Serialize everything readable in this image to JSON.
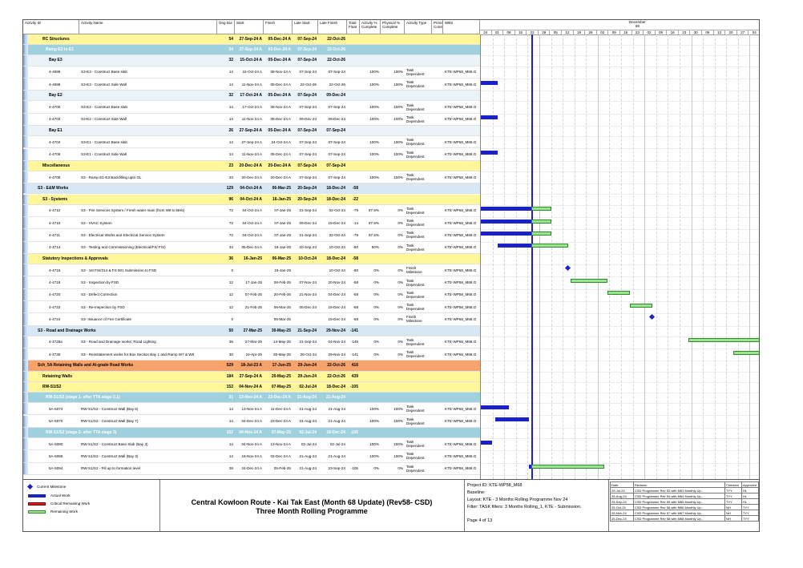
{
  "columns": {
    "activity_id": "Activity ID",
    "activity_name": "Activity Name",
    "orig_dur": "Orig Dur",
    "start": "Start",
    "finish": "Finish",
    "late_start": "Late Start",
    "late_finish": "Late Finish",
    "total_float": "Total Float",
    "activity_pct": "Activity % Complete",
    "physical_pct": "Physical % Complete",
    "activity_type": "Activity Type",
    "primary_constraint": "Prima Const",
    "wbs": "WBS"
  },
  "timeline": {
    "months": [
      {
        "name": "December",
        "num": "68"
      },
      {
        "name": "January",
        "num": "69"
      },
      {
        "name": "February",
        "num": "70"
      },
      {
        "name": "March",
        "num": "71"
      },
      {
        "name": "April",
        "num": "72"
      },
      {
        "name": "May",
        "num": "73"
      }
    ],
    "weeks": [
      "24",
      "01",
      "08",
      "15",
      "22",
      "29",
      "05",
      "12",
      "19",
      "26",
      "02",
      "09",
      "16",
      "23",
      "02",
      "09",
      "16",
      "23",
      "30",
      "06",
      "13",
      "20",
      "27",
      "04"
    ]
  },
  "rows": [
    {
      "type": "group",
      "level": "l1",
      "name": "RC Structures",
      "dur": "54",
      "start": "27-Sep-24 A",
      "finish": "05-Dec-24 A",
      "ls": "07-Sep-24",
      "lf": "22-Oct-26",
      "tf": ""
    },
    {
      "type": "group",
      "level": "l2",
      "name": "Ramp E3 to E1",
      "dur": "54",
      "start": "27-Sep-24 A",
      "finish": "05-Dec-24 A",
      "ls": "07-Sep-24",
      "lf": "22-Oct-26",
      "tf": ""
    },
    {
      "type": "group",
      "level": "l3",
      "name": "Bay E3",
      "dur": "32",
      "start": "15-Oct-24 A",
      "finish": "05-Dec-24 A",
      "ls": "07-Sep-24",
      "lf": "22-Oct-26",
      "tf": ""
    },
    {
      "type": "task",
      "id": "4-4696",
      "name": "S3-E3 - Construct Base slab",
      "dur": "14",
      "start": "15-Oct-24 A",
      "finish": "06-Nov-24 A",
      "ls": "07-Sep-24",
      "lf": "07-Sep-24",
      "tf": "",
      "apc": "100%",
      "ppc": "100%",
      "atype": "Task Dependent",
      "wbs": "KTE-WP58_M68.O"
    },
    {
      "type": "task",
      "id": "4-4698",
      "name": "S3-E3 - Construct Side Wall",
      "dur": "14",
      "start": "11-Nov-24 A",
      "finish": "05-Dec-24 A",
      "ls": "22-Oct-26",
      "lf": "22-Oct-26",
      "tf": "",
      "apc": "100%",
      "ppc": "100%",
      "atype": "Task Dependent",
      "wbs": "KTE-WP58_M68.O"
    },
    {
      "type": "group",
      "level": "l3",
      "name": "Bay E2",
      "dur": "32",
      "start": "17-Oct-24 A",
      "finish": "05-Dec-24 A",
      "ls": "07-Sep-24",
      "lf": "09-Dec-24",
      "tf": ""
    },
    {
      "type": "task",
      "id": "4-4700",
      "name": "S3-E2 - Construct Base slab",
      "dur": "14",
      "start": "17-Oct-24 A",
      "finish": "06-Nov-24 A",
      "ls": "07-Sep-24",
      "lf": "07-Sep-24",
      "tf": "",
      "apc": "100%",
      "ppc": "100%",
      "atype": "Task Dependent",
      "wbs": "KTE-WP58_M68.O"
    },
    {
      "type": "task",
      "id": "4-4702",
      "name": "S3-E2 - Construct Side Wall",
      "dur": "14",
      "start": "11-Nov-24 A",
      "finish": "05-Dec-24 A",
      "ls": "09-Dec-24",
      "lf": "09-Dec-24",
      "tf": "",
      "apc": "100%",
      "ppc": "100%",
      "atype": "Task Dependent",
      "wbs": "KTE-WP58_M68.O"
    },
    {
      "type": "group",
      "level": "l3",
      "name": "Bay E1",
      "dur": "26",
      "start": "27-Sep-24 A",
      "finish": "05-Dec-24 A",
      "ls": "07-Sep-24",
      "lf": "07-Sep-24",
      "tf": ""
    },
    {
      "type": "task",
      "id": "4-4704",
      "name": "S3-E1 - Construct Base slab",
      "dur": "14",
      "start": "27-Sep-24 A",
      "finish": "24-Oct-24 A",
      "ls": "07-Sep-24",
      "lf": "07-Sep-24",
      "tf": "",
      "apc": "100%",
      "ppc": "100%",
      "atype": "Task Dependent",
      "wbs": "KTE-WP58_M68.O"
    },
    {
      "type": "task",
      "id": "4-4706",
      "name": "S3-E1 - Construct Side Wall",
      "dur": "14",
      "start": "11-Nov-24 A",
      "finish": "05-Dec-24 A",
      "ls": "07-Sep-24",
      "lf": "07-Sep-24",
      "tf": "",
      "apc": "100%",
      "ppc": "100%",
      "atype": "Task Dependent",
      "wbs": "KTE-WP58_M68.O"
    },
    {
      "type": "group",
      "level": "l1",
      "name": "Miscellaneous",
      "dur": "23",
      "start": "20-Dec-24 A",
      "finish": "20-Dec-24 A",
      "ls": "07-Sep-24",
      "lf": "07-Sep-24",
      "tf": ""
    },
    {
      "type": "task",
      "id": "4-4708",
      "name": "S3 - Ramp E1-E3 Backfilling upto GL",
      "dur": "23",
      "start": "20-Dec-24 A",
      "finish": "20-Dec-24 A",
      "ls": "07-Sep-24",
      "lf": "07-Sep-24",
      "tf": "",
      "apc": "100%",
      "ppc": "100%",
      "atype": "Task Dependent",
      "wbs": "KTE-WP58_M68.O"
    },
    {
      "type": "group",
      "level": "l0",
      "name": "S3 - E&M Works",
      "dur": "129",
      "start": "04-Oct-24 A",
      "finish": "06-Mar-25",
      "ls": "20-Sep-24",
      "lf": "18-Dec-24",
      "tf": "-58"
    },
    {
      "type": "group",
      "level": "l1",
      "name": "S3 - Systems",
      "dur": "96",
      "start": "04-Oct-24 A",
      "finish": "16-Jan-25",
      "ls": "20-Sep-24",
      "lf": "18-Dec-24",
      "tf": "-22"
    },
    {
      "type": "task",
      "id": "4-4712",
      "name": "S3 - Fire Services System / Fresh water main (from W8 to BHb)",
      "dur": "72",
      "start": "04-Oct-24 A",
      "finish": "07-Jan-25",
      "ls": "21-Sep-24",
      "lf": "02-Oct-24",
      "tf": "-79",
      "apc": "87.5%",
      "ppc": "0%",
      "atype": "Task Dependent",
      "wbs": "KTE-WP58_M68.O"
    },
    {
      "type": "task",
      "id": "4-4710",
      "name": "S3 - HVAC System",
      "dur": "72",
      "start": "04-Oct-24 A",
      "finish": "07-Jan-25",
      "ls": "09-Dec-24",
      "lf": "18-Dec-24",
      "tf": "-14",
      "apc": "87.5%",
      "ppc": "0%",
      "atype": "Task Dependent",
      "wbs": "KTE-WP58_M68.O"
    },
    {
      "type": "task",
      "id": "4-4711",
      "name": "S3 - Electrical Works and Electrical Service System",
      "dur": "72",
      "start": "04-Oct-24 A",
      "finish": "07-Jan-25",
      "ls": "21-Sep-24",
      "lf": "02-Oct-24",
      "tf": "-79",
      "apc": "87.5%",
      "ppc": "0%",
      "atype": "Task Dependent",
      "wbs": "KTE-WP58_M68.O"
    },
    {
      "type": "task",
      "id": "4-4714",
      "name": "S3 - Testing and Commissioning (Electrical/FS/ FSI)",
      "dur": "34",
      "start": "05-Dec-24 A",
      "finish": "16-Jan-25",
      "ls": "20-Sep-24",
      "lf": "10-Oct-24",
      "tf": "-80",
      "apc": "50%",
      "ppc": "0%",
      "atype": "Task Dependent",
      "wbs": "KTE-WP58_M68.O"
    },
    {
      "type": "group",
      "level": "l1",
      "name": "Statutory Inspections & Approvals",
      "dur": "36",
      "start": "16-Jan-25",
      "finish": "06-Mar-25",
      "ls": "10-Oct-24",
      "lf": "18-Dec-24",
      "tf": "-58"
    },
    {
      "type": "task",
      "id": "4-4716",
      "name": "S3 - 1st FSI/314 & FS 501 Submission to FSD",
      "dur": "0",
      "start": "",
      "finish": "16-Jan-25",
      "ls": "",
      "lf": "10-Oct-24",
      "tf": "-80",
      "apc": "0%",
      "ppc": "0%",
      "atype": "Finish Milestone",
      "wbs": "KTE-WP58_M68.O"
    },
    {
      "type": "task",
      "id": "4-4718",
      "name": "S3 - Inspection by FSD",
      "dur": "12",
      "start": "17-Jan-25",
      "finish": "06-Feb-25",
      "ls": "07-Nov-24",
      "lf": "20-Nov-24",
      "tf": "-58",
      "apc": "0%",
      "ppc": "0%",
      "atype": "Task Dependent",
      "wbs": "KTE-WP58_M68.O"
    },
    {
      "type": "task",
      "id": "4-4720",
      "name": "S3 - Defect Correction",
      "dur": "12",
      "start": "07-Feb-25",
      "finish": "20-Feb-25",
      "ls": "21-Nov-24",
      "lf": "04-Dec-24",
      "tf": "-58",
      "apc": "0%",
      "ppc": "0%",
      "atype": "Task Dependent",
      "wbs": "KTE-WP58_M68.O"
    },
    {
      "type": "task",
      "id": "4-4722",
      "name": "S3 - Re-Inspection by FSD",
      "dur": "12",
      "start": "21-Feb-25",
      "finish": "06-Mar-25",
      "ls": "05-Dec-24",
      "lf": "18-Dec-24",
      "tf": "-58",
      "apc": "0%",
      "ppc": "0%",
      "atype": "Task Dependent",
      "wbs": "KTE-WP58_M68.O"
    },
    {
      "type": "task",
      "id": "4-4724",
      "name": "S3- Issuance of Fire Certificate",
      "dur": "0",
      "start": "",
      "finish": "06-Mar-25",
      "ls": "",
      "lf": "18-Dec-24",
      "tf": "-58",
      "apc": "0%",
      "ppc": "0%",
      "atype": "Finish Milestone",
      "wbs": "KTE-WP58_M68.O"
    },
    {
      "type": "group",
      "level": "l0",
      "name": "S3 - Road and Drainage Works",
      "dur": "50",
      "start": "27-Mar-25",
      "finish": "30-May-25",
      "ls": "21-Sep-24",
      "lf": "29-Nov-24",
      "tf": "-141"
    },
    {
      "type": "task",
      "id": "4-4726a",
      "name": "S3 - Road and Drainage works; Road Lighting",
      "dur": "36",
      "start": "27-Mar-25",
      "finish": "14-May-25",
      "ls": "21-Sep-24",
      "lf": "04-Nov-24",
      "tf": "-149",
      "apc": "0%",
      "ppc": "0%",
      "atype": "Task Dependent",
      "wbs": "KTE-WP58_M68.O"
    },
    {
      "type": "task",
      "id": "4-4730",
      "name": "S3 - Reinstatement works for Box Section Bay 1 and Ramp W7 & W8",
      "dur": "30",
      "start": "24-Apr-25",
      "finish": "30-May-25",
      "ls": "26-Oct-24",
      "lf": "29-Nov-24",
      "tf": "-141",
      "apc": "0%",
      "ppc": "0%",
      "atype": "Task Dependent",
      "wbs": "KTE-WP58_M68.O"
    },
    {
      "type": "group",
      "level": "orange",
      "name": "Sch_5A Retaining Walls and At-grade Road Works",
      "dur": "529",
      "start": "18-Jul-23 A",
      "finish": "17-Jun-25",
      "ls": "29-Jun-24",
      "lf": "22-Oct-26",
      "tf": "416"
    },
    {
      "type": "group",
      "level": "l1",
      "name": "Retaining Walls",
      "dur": "184",
      "start": "27-Sep-24 A",
      "finish": "20-May-25",
      "ls": "29-Jun-24",
      "lf": "22-Oct-26",
      "tf": "439"
    },
    {
      "type": "group",
      "level": "l1",
      "name": "RW-S1/S2",
      "dur": "152",
      "start": "04-Nov-24 A",
      "finish": "07-May-25",
      "ls": "02-Jul-24",
      "lf": "18-Dec-24",
      "tf": "-105"
    },
    {
      "type": "group",
      "level": "l2",
      "name": "RW-S1/S2 (stage 1- after TTA stage 2.1)",
      "dur": "31",
      "start": "13-Nov-24 A",
      "finish": "23-Dec-24 A",
      "ls": "21-Aug-24",
      "lf": "21-Aug-24",
      "tf": ""
    },
    {
      "type": "task",
      "id": "5A-5074",
      "name": "RW-S1/S2 - Construct Wall (Bay 6)",
      "dur": "14",
      "start": "13-Nov-24 A",
      "finish": "11-Dec-24 A",
      "ls": "21-Aug-24",
      "lf": "21-Aug-24",
      "tf": "",
      "apc": "100%",
      "ppc": "100%",
      "atype": "Task Dependent",
      "wbs": "KTE-WP58_M68.O"
    },
    {
      "type": "task",
      "id": "5A-5070",
      "name": "RW-S1/S2 - Construct Wall (Bay 7)",
      "dur": "14",
      "start": "04-Dec-24 A",
      "finish": "23-Dec-24 A",
      "ls": "21-Aug-24",
      "lf": "21-Aug-24",
      "tf": "",
      "apc": "100%",
      "ppc": "100%",
      "atype": "Task Dependent",
      "wbs": "KTE-WP58_M68.O"
    },
    {
      "type": "group",
      "level": "l2",
      "name": "RW-S1/S2 (stage 2- after TTA stage 3)",
      "dur": "152",
      "start": "04-Nov-24 A",
      "finish": "07-May-25",
      "ls": "02-Jul-24",
      "lf": "18-Dec-24",
      "tf": "-105"
    },
    {
      "type": "task",
      "id": "5A-5080",
      "name": "RW-S1/S2 - Construct Base Slab (Bay 3)",
      "dur": "14",
      "start": "04-Nov-24 A",
      "finish": "13-Nov-24 A",
      "ls": "02-Jul-24",
      "lf": "02-Jul-24",
      "tf": "",
      "apc": "100%",
      "ppc": "100%",
      "atype": "Task Dependent",
      "wbs": "KTE-WP58_M68.O"
    },
    {
      "type": "task",
      "id": "5A-5086",
      "name": "RW-S1/S2 - Construct Wall (Bay 3)",
      "dur": "14",
      "start": "18-Nov-24 A",
      "finish": "02-Dec-24 A",
      "ls": "21-Aug-24",
      "lf": "21-Aug-24",
      "tf": "",
      "apc": "100%",
      "ppc": "100%",
      "atype": "Task Dependent",
      "wbs": "KTE-WP58_M68.O"
    },
    {
      "type": "task",
      "id": "5A-5094",
      "name": "RW-S1/S2 - Fill up to formation level",
      "dur": "28",
      "start": "24-Dec-24 A",
      "finish": "05-Feb-25",
      "ls": "21-Aug-24",
      "lf": "23-Sep-24",
      "tf": "-105",
      "apc": "0%",
      "ppc": "0%",
      "atype": "Task Dependent",
      "wbs": "KTE-WP58_M68.O"
    }
  ],
  "bars": [
    {
      "row": 4,
      "kind": "actual",
      "from": 0.0,
      "to": 0.06
    },
    {
      "row": 7,
      "kind": "actual",
      "from": 0.0,
      "to": 0.06
    },
    {
      "row": 10,
      "kind": "actual",
      "from": 0.0,
      "to": 0.06
    },
    {
      "row": 15,
      "kind": "actual",
      "from": 0.0,
      "to": 0.18
    },
    {
      "row": 15,
      "kind": "remain",
      "from": 0.18,
      "to": 0.25
    },
    {
      "row": 16,
      "kind": "actual",
      "from": 0.0,
      "to": 0.18
    },
    {
      "row": 16,
      "kind": "remain",
      "from": 0.18,
      "to": 0.25
    },
    {
      "row": 17,
      "kind": "actual",
      "from": 0.0,
      "to": 0.18
    },
    {
      "row": 17,
      "kind": "remain",
      "from": 0.18,
      "to": 0.25
    },
    {
      "row": 18,
      "kind": "actual",
      "from": 0.06,
      "to": 0.18
    },
    {
      "row": 18,
      "kind": "remain",
      "from": 0.18,
      "to": 0.31
    },
    {
      "row": 20,
      "kind": "milestone",
      "from": 0.31,
      "to": 0.31
    },
    {
      "row": 21,
      "kind": "remain",
      "from": 0.32,
      "to": 0.45
    },
    {
      "row": 22,
      "kind": "remain",
      "from": 0.45,
      "to": 0.53
    },
    {
      "row": 23,
      "kind": "remain",
      "from": 0.53,
      "to": 0.61
    },
    {
      "row": 24,
      "kind": "milestone",
      "from": 0.61,
      "to": 0.61
    },
    {
      "row": 26,
      "kind": "remain",
      "from": 0.74,
      "to": 1.0
    },
    {
      "row": 27,
      "kind": "remain",
      "from": 0.9,
      "to": 1.0
    },
    {
      "row": 32,
      "kind": "actual",
      "from": 0.0,
      "to": 0.1
    },
    {
      "row": 33,
      "kind": "actual",
      "from": 0.05,
      "to": 0.17
    },
    {
      "row": 35,
      "kind": "actual",
      "from": 0.0,
      "to": 0.04
    },
    {
      "row": 37,
      "kind": "remain",
      "from": 0.18,
      "to": 0.44
    },
    {
      "row": 37,
      "kind": "actual",
      "from": 0.17,
      "to": 0.18
    }
  ],
  "data_date_fraction": 0.18,
  "legend": {
    "items": [
      "Current Milestone",
      "Actual Work",
      "Critical Remaining Work",
      "Remaining Work"
    ]
  },
  "title": {
    "line1": "Central Kowloon Route - Kai Tak East (Month 68 Update) (Rev58- CSD)",
    "line2": "Three Month Rolling Programme"
  },
  "project": {
    "id": "Project ID: KTE-WP58_M68",
    "baseline": "Baseline:",
    "layout": "Layout: KTE - 3 Months Rolling Programme Nov 24",
    "filter": "Filter: TASK filters: 3 Months Rolling_1, KTE - Submission.",
    "page": "Page 4 of 13"
  },
  "revisions": {
    "headers": [
      "Date",
      "Revision",
      "Checked",
      "Approved"
    ],
    "rows": [
      [
        "25-Jul-24",
        "CSD Programme Rev 53 with M63 Monthly Up...",
        "TYY",
        "HL"
      ],
      [
        "25-Aug-24",
        "CSD Programme Rev 54 with M64 Monthly Up...",
        "TYY",
        "HL"
      ],
      [
        "25-Sep-24",
        "CSD Programme Rev 55 with M65 Monthly Up...",
        "TYY",
        "HL"
      ],
      [
        "25-Oct-24",
        "CSD Programme Rev 56 with M66 Monthly Up...",
        "NH",
        "TYY"
      ],
      [
        "25-Nov-24",
        "CSD Programme Rev 57 with M67 Monthly Up...",
        "NH",
        "TYY"
      ],
      [
        "25-Dec-24",
        "CSD Programme Rev 58 with M68 Monthly Up...",
        "NH",
        "TYY"
      ]
    ]
  },
  "colors": {
    "l0": "#d7e8f4",
    "l1": "#fff799",
    "l2": "#9fd0de",
    "l3": "#e9f3f8",
    "orange": "#f7a36c",
    "task": "#ffffff",
    "actual": "#1c20c8",
    "remain": "#9be58f"
  }
}
